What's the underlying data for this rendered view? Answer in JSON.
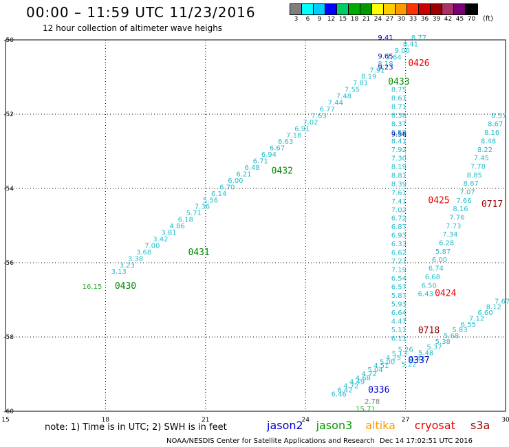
{
  "header": {
    "title": "00:00 – 11:59 UTC 11/23/2016",
    "subtitle": "12 hour collection of altimeter wave heighs"
  },
  "colorbar": {
    "colors": [
      "#7f7f7f",
      "#00ffff",
      "#00ccff",
      "#0000ff",
      "#00cc66",
      "#00aa00",
      "#009900",
      "#ffff00",
      "#ffcc00",
      "#ff9900",
      "#ff3300",
      "#cc0000",
      "#990000",
      "#aa3366",
      "#770077",
      "#000000"
    ],
    "labels": [
      "3",
      "6",
      "9",
      "12",
      "15",
      "18",
      "21",
      "24",
      "27",
      "30",
      "33",
      "36",
      "39",
      "42",
      "45",
      "70"
    ],
    "unit": "(ft)"
  },
  "axes": {
    "x_ticks": [
      "15",
      "18",
      "21",
      "24",
      "27",
      "30"
    ],
    "y_ticks": [
      "-50",
      "-52",
      "-54",
      "-56",
      "-58",
      "-60"
    ]
  },
  "map_data": {
    "x_range": [
      15,
      30
    ],
    "y_range": [
      -60,
      -50
    ],
    "passes": [
      {
        "label": "0430",
        "color": "#008800",
        "lon": 18.6,
        "lat": -56.7
      },
      {
        "label": "0431",
        "color": "#008800",
        "lon": 20.8,
        "lat": -55.8
      },
      {
        "label": "0432",
        "color": "#008800",
        "lon": 23.3,
        "lat": -53.6
      },
      {
        "label": "0433",
        "color": "#008800",
        "lon": 26.8,
        "lat": -51.2
      },
      {
        "label": "0426",
        "color": "#ee0000",
        "lon": 27.4,
        "lat": -50.7
      },
      {
        "label": "0425",
        "color": "#ee0000",
        "lon": 28.0,
        "lat": -54.4
      },
      {
        "label": "0424",
        "color": "#ee0000",
        "lon": 28.2,
        "lat": -56.9
      },
      {
        "label": "0717",
        "color": "#990000",
        "lon": 29.6,
        "lat": -54.5
      },
      {
        "label": "0718",
        "color": "#990000",
        "lon": 27.7,
        "lat": -57.9
      },
      {
        "label": "0337",
        "color": "#0000cc",
        "lon": 27.4,
        "lat": -58.7
      },
      {
        "label": "0336",
        "color": "#0000cc",
        "lon": 26.2,
        "lat": -59.5
      }
    ],
    "tracks": [
      {
        "name": "track-a",
        "color": "#22bbcc",
        "values": [
          "3.13",
          "3.23",
          "3.38",
          "3.68",
          "7.00",
          "3.42",
          "3.81",
          "4.86",
          "6.18",
          "5.71",
          "7.36",
          "5.56",
          "6.14",
          "6.70",
          "6.00",
          "6.21",
          "6.48",
          "6.71",
          "6.94",
          "6.67",
          "6.63",
          "7.18",
          "6.91",
          "7.02",
          "7.63",
          "6.77",
          "7.44",
          "7.48",
          "7.55",
          "7.81",
          "8.19",
          "7.91",
          "8.18",
          "7.64",
          "9.00",
          "8.41",
          "8.77"
        ],
        "start": [
          18.4,
          -56.3
        ],
        "end": [
          27.4,
          -50.0
        ]
      },
      {
        "name": "track-b",
        "color": "#22bbcc",
        "values": [
          "8.75",
          "8.61",
          "8.71",
          "8.38",
          "8.37",
          "8.59",
          "8.41",
          "7.92",
          "7.30",
          "8.19",
          "8.81",
          "8.39",
          "7.61",
          "7.41",
          "7.02",
          "6.72",
          "6.87",
          "6.93",
          "6.33",
          "6.62",
          "7.27",
          "7.19",
          "6.54",
          "6.57",
          "5.87",
          "5.93",
          "6.64",
          "4.47",
          "5.11",
          "6.11"
        ],
        "start": [
          26.8,
          -51.4
        ],
        "end": [
          26.8,
          -58.1
        ]
      },
      {
        "name": "track-c",
        "color": "#22bbcc",
        "values": [
          "5.26",
          "5.13",
          "4.25",
          "5.00",
          "4.51",
          "5.04",
          "4.72",
          "4.68",
          "4.49",
          "4.72",
          "6.42",
          "6.46"
        ],
        "start": [
          27.0,
          -58.4
        ],
        "end": [
          25.0,
          -59.6
        ]
      },
      {
        "name": "track-d",
        "color": "#22bbcc",
        "values": [
          "8.57",
          "8.67",
          "8.16",
          "8.48",
          "8.22",
          "7.45",
          "7.78",
          "8.85",
          "8.67",
          "7.07",
          "7.66",
          "8.16",
          "7.76",
          "7.73",
          "7.34",
          "6.28",
          "5.87",
          "6.00",
          "6.74",
          "6.68",
          "6.50",
          "6.43"
        ],
        "start": [
          29.8,
          -52.1
        ],
        "end": [
          27.6,
          -56.9
        ]
      },
      {
        "name": "track-e",
        "color": "#22bbcc",
        "values": [
          "7.67",
          "8.12",
          "6.60",
          "7.12",
          "6.55",
          "5.83",
          "5.68",
          "5.38",
          "5.37",
          "5.48",
          "5.43",
          "5.22"
        ],
        "start": [
          29.9,
          -57.1
        ],
        "end": [
          27.1,
          -58.8
        ]
      }
    ],
    "special": [
      {
        "value": "16.15",
        "color": "#33aa33",
        "lon": 17.6,
        "lat": -56.7
      },
      {
        "value": "9.41",
        "color": "#0000aa",
        "lon": 26.4,
        "lat": -50.0
      },
      {
        "value": "9.65",
        "color": "#0000aa",
        "lon": 26.4,
        "lat": -50.5
      },
      {
        "value": "9.23",
        "color": "#0000aa",
        "lon": 26.4,
        "lat": -50.8
      },
      {
        "value": "9.56",
        "color": "#0000aa",
        "lon": 26.8,
        "lat": -52.6
      },
      {
        "value": "2.78",
        "color": "#777777",
        "lon": 26.0,
        "lat": -59.8
      },
      {
        "value": "15.71",
        "color": "#33aa33",
        "lon": 25.8,
        "lat": -60.0
      }
    ]
  },
  "footer": {
    "note": "note: 1) Time is in UTC; 2) SWH is in feet",
    "legend": [
      {
        "label": "jason2",
        "color": "#0000cc"
      },
      {
        "label": "jason3",
        "color": "#009900"
      },
      {
        "label": "altika",
        "color": "#ff9900"
      },
      {
        "label": "cryosat",
        "color": "#ee0000"
      },
      {
        "label": "s3a",
        "color": "#990000"
      }
    ],
    "credit": "NOAA/NESDIS Center for Satellite Applications and Research",
    "date": "Dec 14 17:02:51 UTC 2016"
  }
}
